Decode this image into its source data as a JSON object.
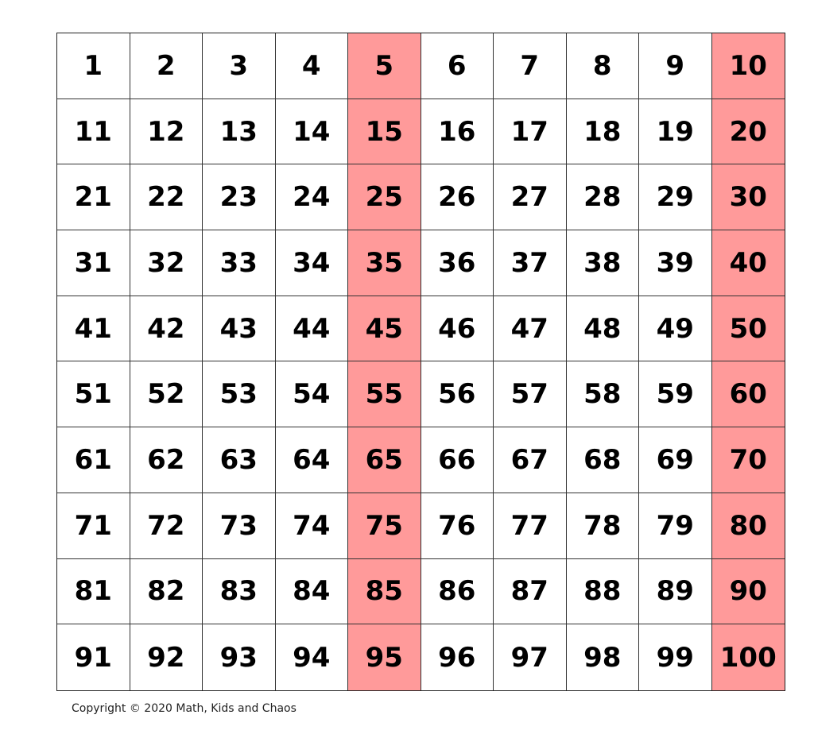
{
  "chart": {
    "numbers": [
      1,
      2,
      3,
      4,
      5,
      6,
      7,
      8,
      9,
      10,
      11,
      12,
      13,
      14,
      15,
      16,
      17,
      18,
      19,
      20,
      21,
      22,
      23,
      24,
      25,
      26,
      27,
      28,
      29,
      30,
      31,
      32,
      33,
      34,
      35,
      36,
      37,
      38,
      39,
      40,
      41,
      42,
      43,
      44,
      45,
      46,
      47,
      48,
      49,
      50,
      51,
      52,
      53,
      54,
      55,
      56,
      57,
      58,
      59,
      60,
      61,
      62,
      63,
      64,
      65,
      66,
      67,
      68,
      69,
      70,
      71,
      72,
      73,
      74,
      75,
      76,
      77,
      78,
      79,
      80,
      81,
      82,
      83,
      84,
      85,
      86,
      87,
      88,
      89,
      90,
      91,
      92,
      93,
      94,
      95,
      96,
      97,
      98,
      99,
      100
    ],
    "highlighted_multiple_of": 5,
    "highlight_color": "#ff9a9a",
    "default_color": "#ffffff"
  },
  "footer": {
    "copyright": "Copyright © 2020 Math, Kids and Chaos"
  }
}
